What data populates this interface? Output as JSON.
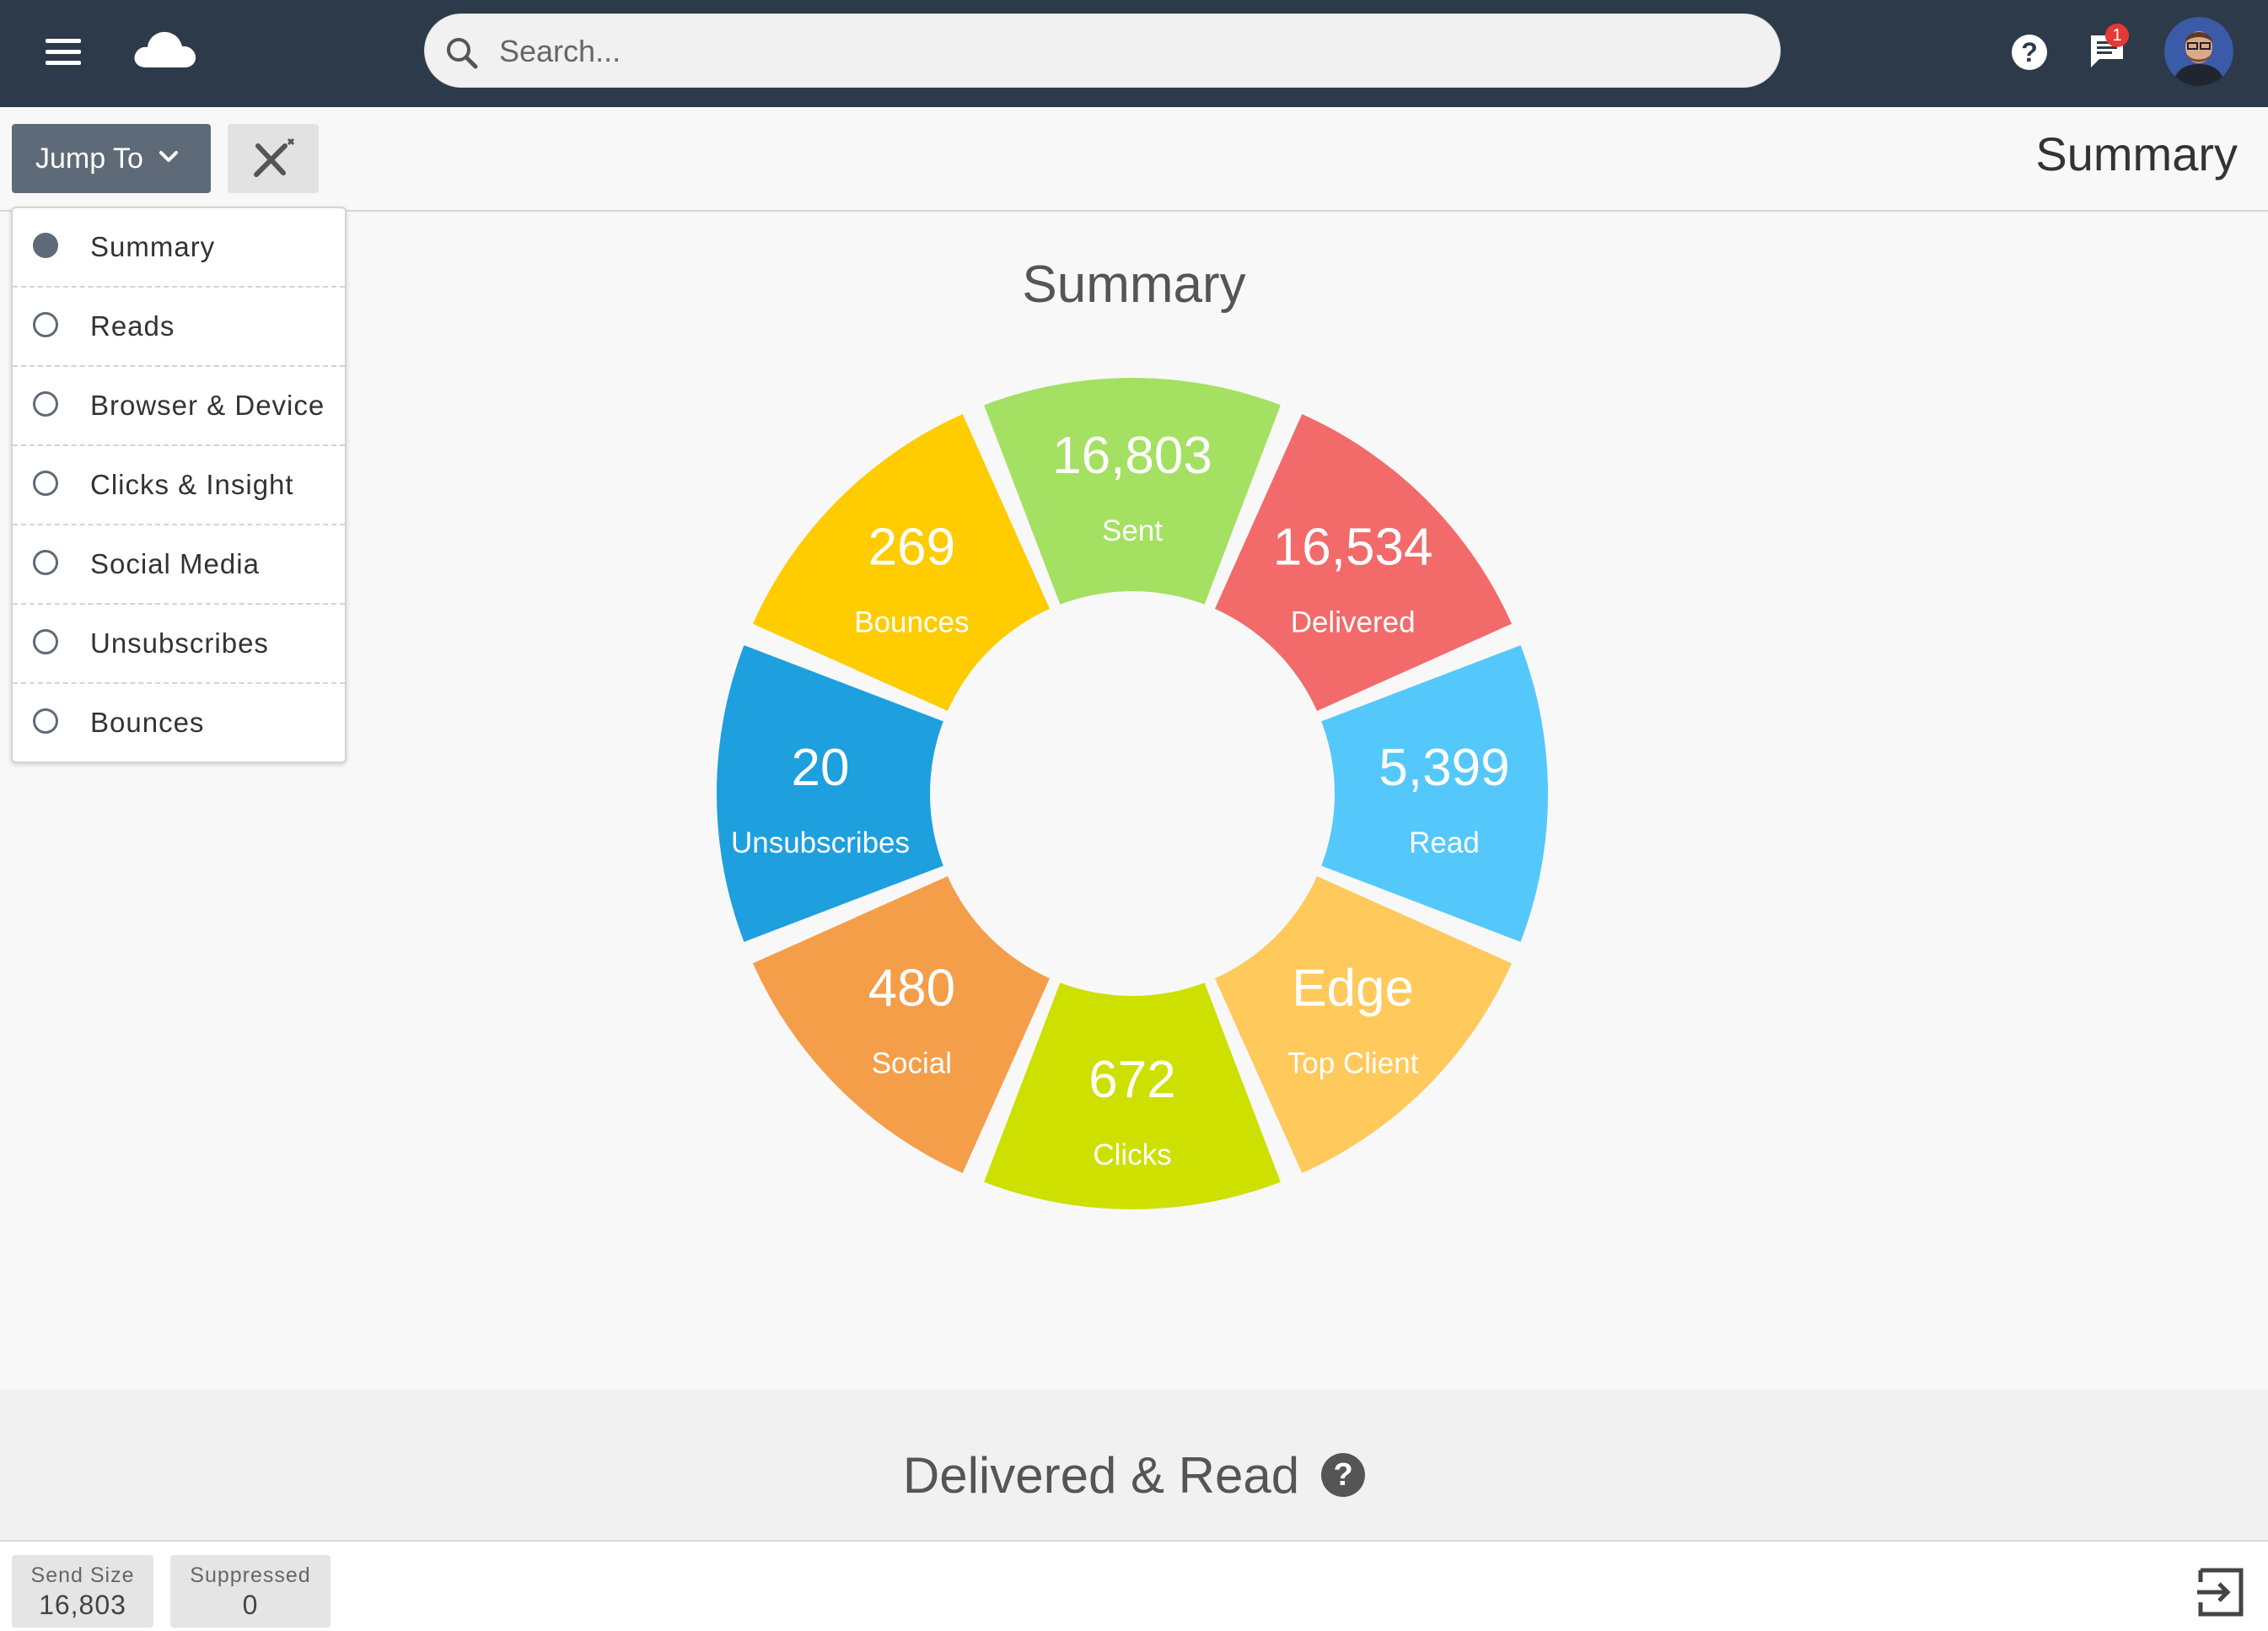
{
  "header": {
    "search_placeholder": "Search...",
    "notification_count": "1",
    "help_glyph": "?"
  },
  "toolbar": {
    "jump_label": "Jump To",
    "page_title": "Summary"
  },
  "jump_menu": {
    "items": [
      {
        "label": "Summary",
        "selected": true
      },
      {
        "label": "Reads",
        "selected": false
      },
      {
        "label": "Browser & Device",
        "selected": false
      },
      {
        "label": "Clicks & Insight",
        "selected": false
      },
      {
        "label": "Social Media",
        "selected": false
      },
      {
        "label": "Unsubscribes",
        "selected": false
      },
      {
        "label": "Bounces",
        "selected": false
      }
    ]
  },
  "summary": {
    "title": "Summary",
    "segments": [
      {
        "value": "16,803",
        "label": "Sent",
        "color": "#a4e062"
      },
      {
        "value": "16,534",
        "label": "Delivered",
        "color": "#f26a6a"
      },
      {
        "value": "5,399",
        "label": "Read",
        "color": "#54c8fa"
      },
      {
        "value": "Edge",
        "label": "Top Client",
        "color": "#ffc95c"
      },
      {
        "value": "672",
        "label": "Clicks",
        "color": "#cde000"
      },
      {
        "value": "480",
        "label": "Social",
        "color": "#f59e4a"
      },
      {
        "value": "20",
        "label": "Unsubscribes",
        "color": "#1e9fde"
      },
      {
        "value": "269",
        "label": "Bounces",
        "color": "#ffcc00"
      }
    ]
  },
  "section2": {
    "title": "Delivered & Read",
    "help_glyph": "?"
  },
  "footer": {
    "stats": [
      {
        "label": "Send Size",
        "value": "16,803"
      },
      {
        "label": "Suppressed",
        "value": "0"
      }
    ]
  },
  "colors": {
    "topbar": "#2d3a4a",
    "jump_button": "#5e6a77"
  }
}
